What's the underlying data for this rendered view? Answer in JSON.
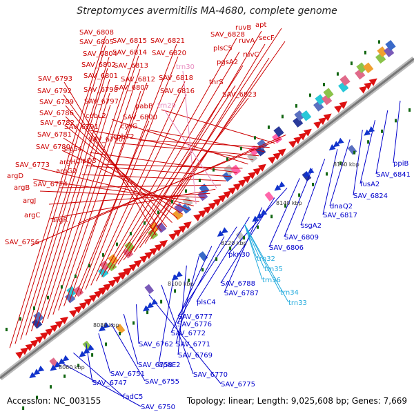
{
  "title": "Streptomyces avermitilis MA-4680, complete genome",
  "footer": {
    "accession": "Accession: NC_003155",
    "topology": "Topology: linear; Length: 9,025,608 bp; Genes: 7,669"
  },
  "colors": {
    "forward_gene": "#dd1111",
    "reverse_gene": "#1133cc",
    "forward_label": "#cc0000",
    "reverse_label": "#0000cc",
    "trna_forward": "#e88cc0",
    "trna_reverse": "#22aadd",
    "backbone": "#888888",
    "tick": "#116611"
  },
  "scale_ticks": [
    {
      "label": "8060 kbp"
    },
    {
      "label": "8080 kbp"
    },
    {
      "label": "8100 kbp"
    },
    {
      "label": "8120 kbp"
    },
    {
      "label": "8140 kbp"
    },
    {
      "label": "8160 kbp"
    }
  ],
  "forward_labels": [
    "SAV_6808",
    "SAV_6805",
    "SAV_6804",
    "SAV_6802",
    "SAV_6801",
    "SAV_6798",
    "SAV_6797",
    "SAV_6815",
    "SAV_6814",
    "SAV_6813",
    "SAV_6812",
    "SAV_6807",
    "SAV_6800",
    "SAV_6821",
    "SAV_6820",
    "SAV_6818",
    "SAV_6816",
    "SAV_6828",
    "plsC5",
    "pgsA2",
    "thrS",
    "SAV_6823",
    "ruvB",
    "apt",
    "secF",
    "ruvA",
    "ruvC",
    "SAV_6793",
    "SAV_6792",
    "SAV_6789",
    "SAV_6786",
    "SAV_6782",
    "SAV_6781",
    "SAV_6780",
    "SAV_6773",
    "argD",
    "argB",
    "argJ",
    "argC",
    "SAV_6774",
    "argG2",
    "argH",
    "sig54",
    "glpQ3",
    "cobL2",
    "SAV_6791",
    "SAV_6790",
    "cysG",
    "cobT2",
    "pabB",
    "argR",
    "SAV_6756"
  ],
  "trna_forward_labels": [
    "trn30",
    "trn29"
  ],
  "reverse_labels": [
    "ppiB",
    "SAV_6841",
    "fusA2",
    "SAV_6824",
    "dnaQ2",
    "SAV_6817",
    "ssgA2",
    "SAV_6809",
    "SAV_6806",
    "pkn30",
    "SAV_6788",
    "SAV_6787",
    "plsC4",
    "SAV_6777",
    "SAV_6776",
    "SAV_6772",
    "SAV_6771",
    "SAV_6769",
    "aphE2",
    "SAV_6770",
    "SAV_6775",
    "SAV_6762",
    "SAV_6758",
    "SAV_6755",
    "SAV_6751",
    "SAV_6747",
    "fadC5",
    "SAV_6750"
  ],
  "trna_reverse_labels": [
    "trn32",
    "trn35",
    "trn36",
    "trn34",
    "trn33"
  ]
}
